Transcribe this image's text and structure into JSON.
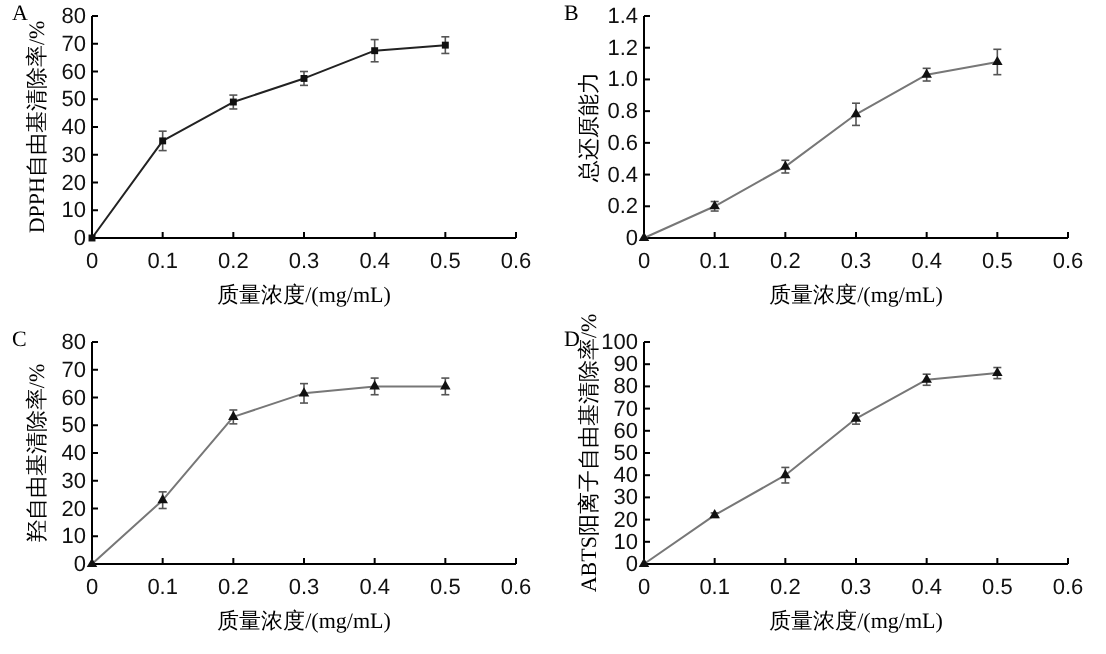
{
  "chart_data": [
    {
      "type": "line",
      "title": "A",
      "xlabel": "质量浓度/(mg/mL)",
      "ylabel": "DPPH自由基清除率/%",
      "x": [
        0,
        0.1,
        0.2,
        0.3,
        0.4,
        0.5
      ],
      "xlim": [
        0,
        0.6
      ],
      "xticks": [
        0,
        0.1,
        0.2,
        0.3,
        0.4,
        0.5,
        0.6
      ],
      "ylim": [
        0,
        80
      ],
      "yticks": [
        0,
        10,
        20,
        30,
        40,
        50,
        60,
        70,
        80
      ],
      "marker": "square",
      "series": [
        {
          "color": "#222222",
          "values": [
            0,
            35,
            49,
            57.5,
            67.5,
            69.5
          ],
          "errors": [
            null,
            3.5,
            2.5,
            2.5,
            4,
            3
          ]
        }
      ]
    },
    {
      "type": "line",
      "title": "B",
      "xlabel": "质量浓度/(mg/mL)",
      "ylabel": "总还原能力",
      "x": [
        0,
        0.1,
        0.2,
        0.3,
        0.4,
        0.5
      ],
      "xlim": [
        0,
        0.6
      ],
      "xticks": [
        0,
        0.1,
        0.2,
        0.3,
        0.4,
        0.5,
        0.6
      ],
      "ylim": [
        0,
        1.4
      ],
      "yticks": [
        {
          "value": 0,
          "label": "0"
        },
        {
          "value": 0.2,
          "label": "0.2"
        },
        {
          "value": 0.4,
          "label": "0.4"
        },
        {
          "value": 0.6,
          "label": "0.6"
        },
        {
          "value": 0.8,
          "label": "0.8"
        },
        {
          "value": 1,
          "label": "1.0"
        },
        {
          "value": 1.2,
          "label": "1.2"
        },
        {
          "value": 1.4,
          "label": "1.4"
        }
      ],
      "marker": "triangle",
      "series": [
        {
          "color": "#777777",
          "values": [
            0,
            0.2,
            0.45,
            0.78,
            1.03,
            1.11
          ],
          "errors": [
            null,
            0.03,
            0.04,
            0.07,
            0.04,
            0.08
          ]
        }
      ]
    },
    {
      "type": "line",
      "title": "C",
      "xlabel": "质量浓度/(mg/mL)",
      "ylabel": "羟自由基清除率/%",
      "x": [
        0,
        0.1,
        0.2,
        0.3,
        0.4,
        0.5
      ],
      "xlim": [
        0,
        0.6
      ],
      "xticks": [
        0,
        0.1,
        0.2,
        0.3,
        0.4,
        0.5,
        0.6
      ],
      "ylim": [
        0,
        80
      ],
      "yticks": [
        0,
        10,
        20,
        30,
        40,
        50,
        60,
        70,
        80
      ],
      "marker": "triangle",
      "series": [
        {
          "color": "#777777",
          "values": [
            0,
            23,
            53,
            61.5,
            64,
            64
          ],
          "errors": [
            null,
            3,
            2.5,
            3.5,
            3,
            3
          ]
        }
      ]
    },
    {
      "type": "line",
      "title": "D",
      "xlabel": "质量浓度/(mg/mL)",
      "ylabel": "ABTS阳离子自由基清除率/%",
      "x": [
        0,
        0.1,
        0.2,
        0.3,
        0.4,
        0.5
      ],
      "xlim": [
        0,
        0.6
      ],
      "xticks": [
        0,
        0.1,
        0.2,
        0.3,
        0.4,
        0.5,
        0.6
      ],
      "ylim": [
        0,
        100
      ],
      "yticks": [
        0,
        10,
        20,
        30,
        40,
        50,
        60,
        70,
        80,
        90,
        100
      ],
      "marker": "triangle",
      "series": [
        {
          "color": "#777777",
          "values": [
            0,
            22,
            40,
            65.5,
            83,
            86
          ],
          "errors": [
            null,
            1,
            3.5,
            2.5,
            2.5,
            2.5
          ]
        }
      ]
    }
  ]
}
